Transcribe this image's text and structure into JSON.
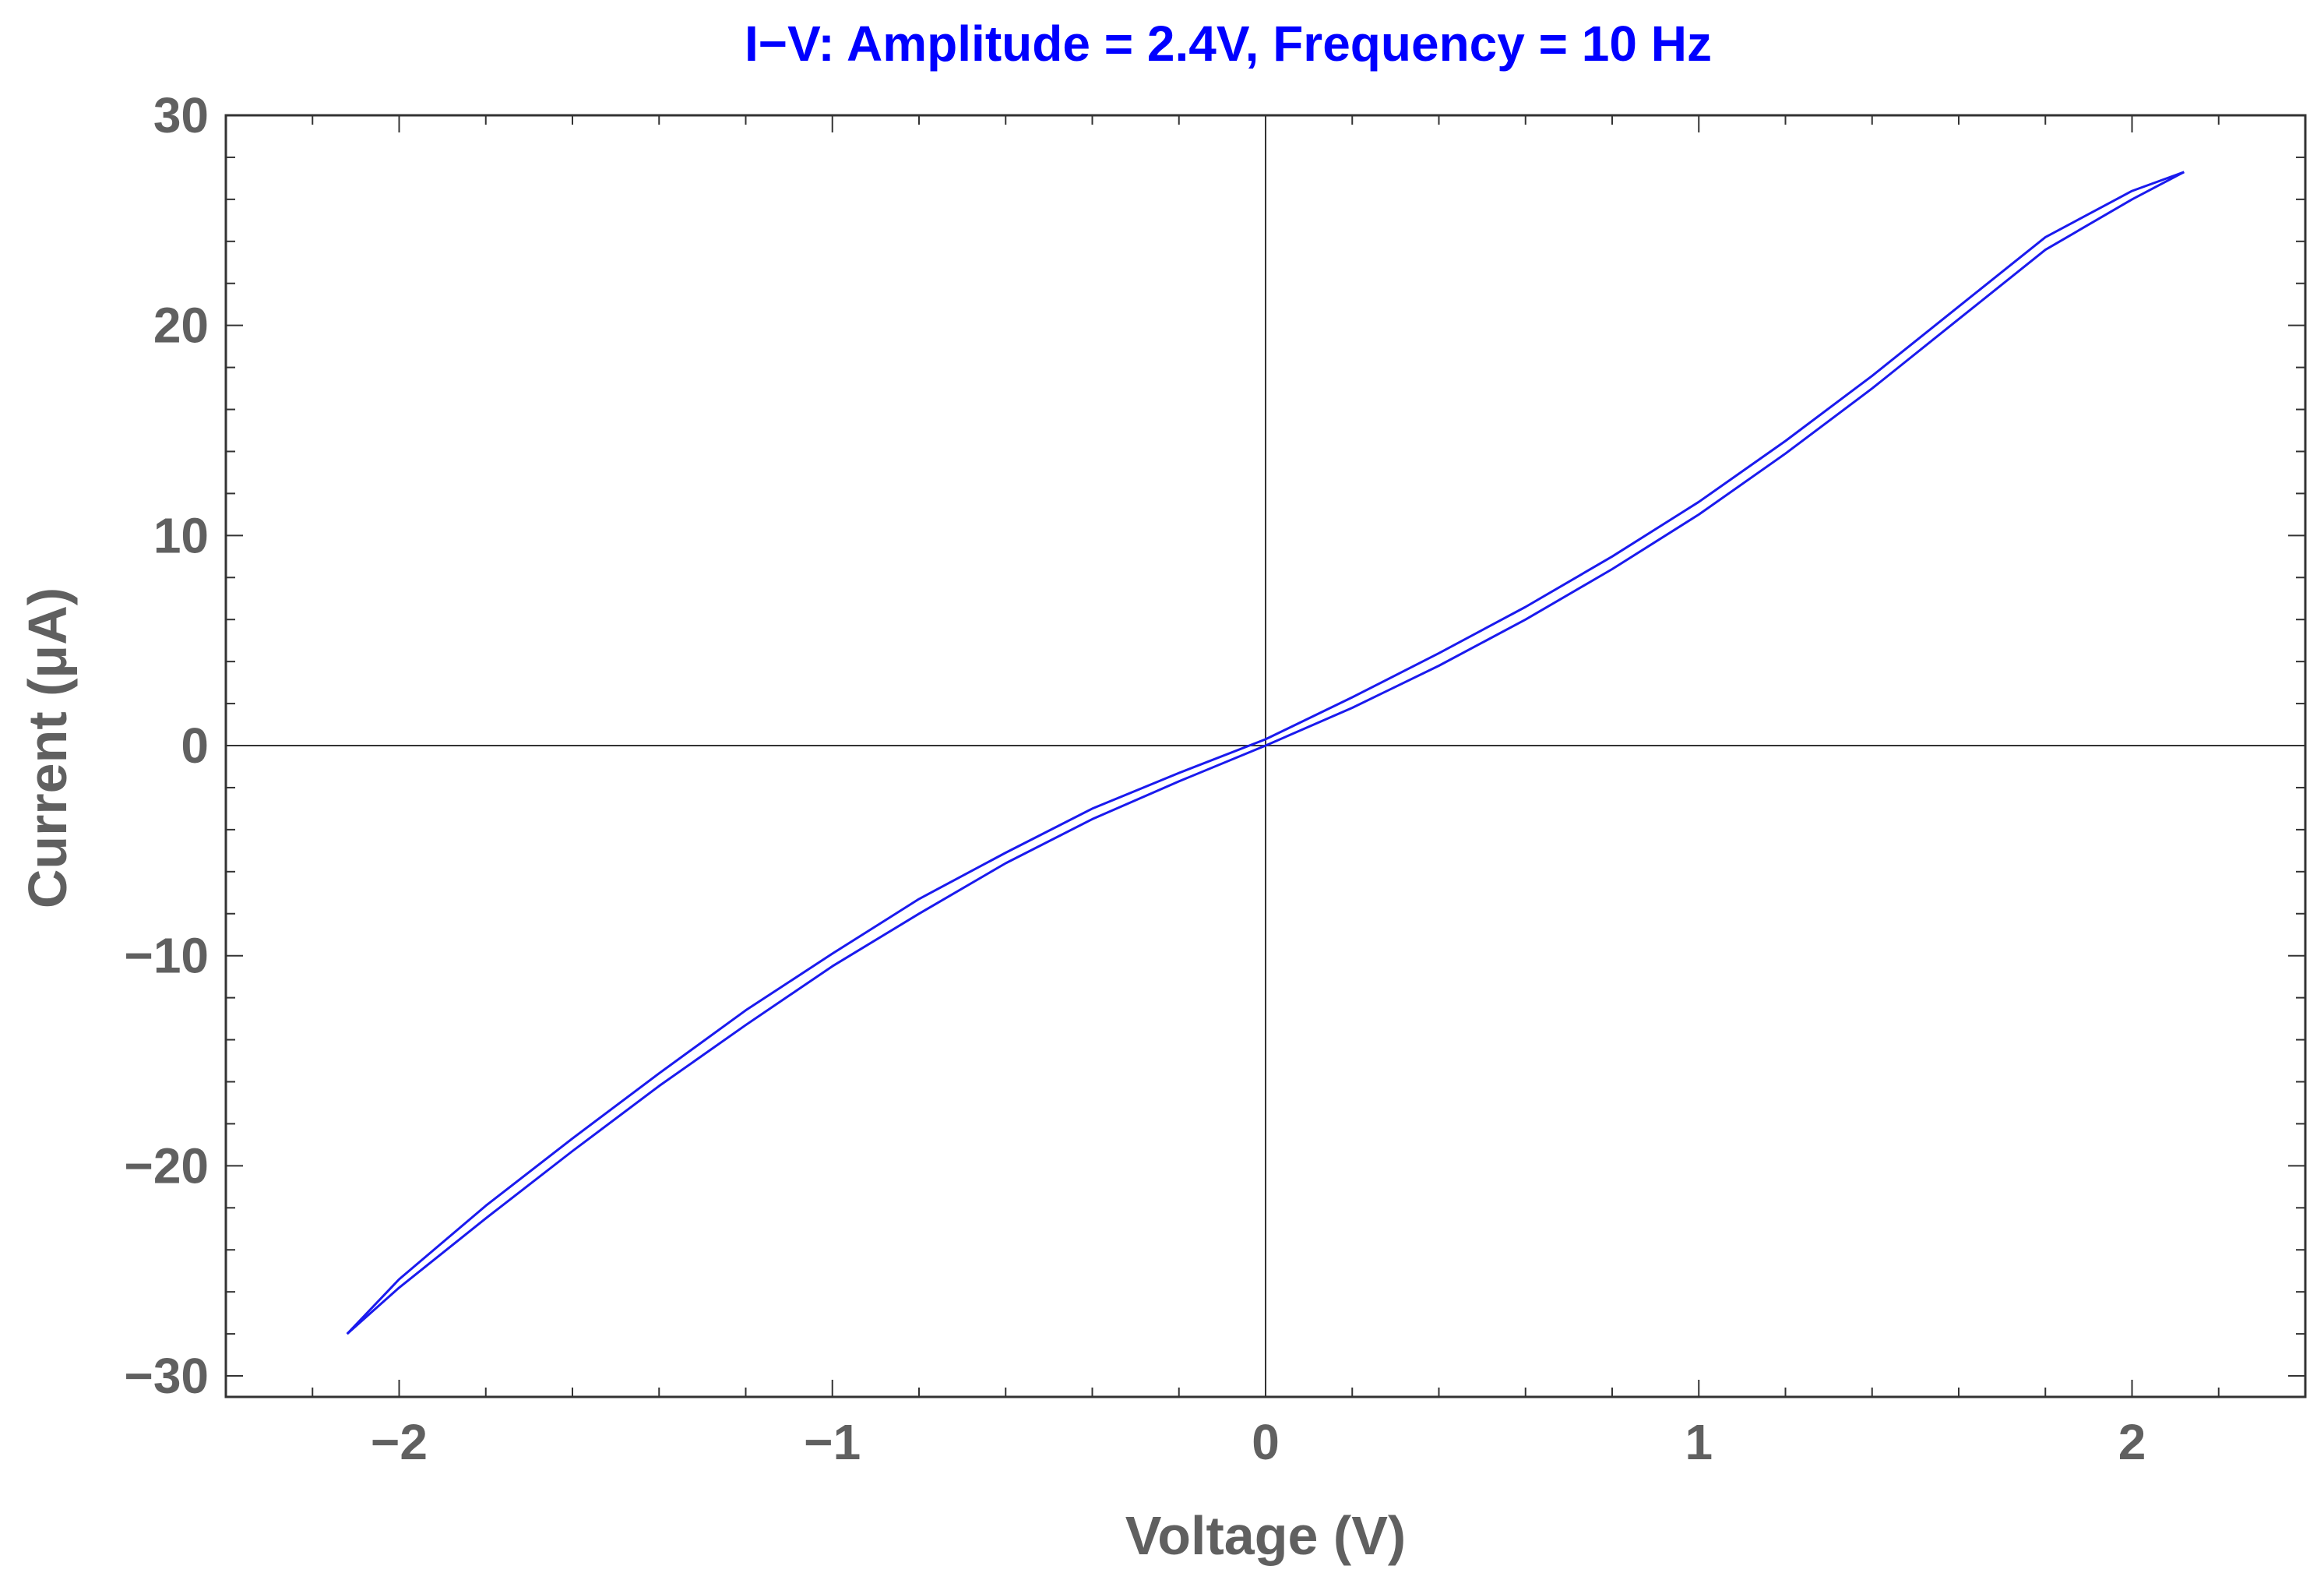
{
  "colors": {
    "title": "#0000ff",
    "series": "#1a1aee",
    "axis_text": "#606060",
    "frame": "#333333",
    "zero_line": "#333333",
    "background": "#ffffff"
  },
  "chart_data": {
    "type": "line",
    "title": "I−V: Amplitude = 2.4V, Frequency = 10 Hz",
    "xlabel": "Voltage (V)",
    "ylabel": "Current (μA)",
    "xlim": [
      -2.4,
      2.4
    ],
    "ylim": [
      -31,
      30
    ],
    "x_ticks": [
      -2,
      -1,
      0,
      1,
      2
    ],
    "x_tick_labels": [
      "−2",
      "−1",
      "0",
      "1",
      "2"
    ],
    "x_minor_step": 0.2,
    "y_ticks": [
      -30,
      -20,
      -10,
      0,
      10,
      20,
      30
    ],
    "y_tick_labels": [
      "−30",
      "−20",
      "−10",
      "0",
      "10",
      "20",
      "30"
    ],
    "y_minor_step": 2,
    "grid": false,
    "zero_axes": true,
    "legend": "none",
    "series": [
      {
        "x": [
          -2.12,
          -2.0,
          -1.8,
          -1.6,
          -1.4,
          -1.2,
          -1.0,
          -0.8,
          -0.6,
          -0.4,
          -0.2,
          0.0,
          0.2,
          0.4,
          0.6,
          0.8,
          1.0,
          1.2,
          1.4,
          1.6,
          1.8,
          2.0,
          2.12
        ],
        "values": [
          -28.0,
          -25.8,
          -22.5,
          -19.3,
          -16.2,
          -13.3,
          -10.5,
          -8.0,
          -5.6,
          -3.5,
          -1.7,
          0.0,
          1.8,
          3.8,
          6.0,
          8.4,
          11.0,
          13.9,
          17.0,
          20.3,
          23.6,
          26.0,
          27.3
        ]
      },
      {
        "x": [
          -2.12,
          -2.0,
          -1.8,
          -1.6,
          -1.4,
          -1.2,
          -1.0,
          -0.8,
          -0.6,
          -0.4,
          -0.2,
          0.0,
          0.2,
          0.4,
          0.6,
          0.8,
          1.0,
          1.2,
          1.4,
          1.6,
          1.8,
          2.0,
          2.12
        ],
        "values": [
          -28.0,
          -25.4,
          -21.9,
          -18.7,
          -15.6,
          -12.6,
          -9.9,
          -7.3,
          -5.1,
          -3.0,
          -1.3,
          0.3,
          2.3,
          4.4,
          6.6,
          9.0,
          11.6,
          14.5,
          17.6,
          20.9,
          24.2,
          26.4,
          27.3
        ]
      }
    ]
  }
}
